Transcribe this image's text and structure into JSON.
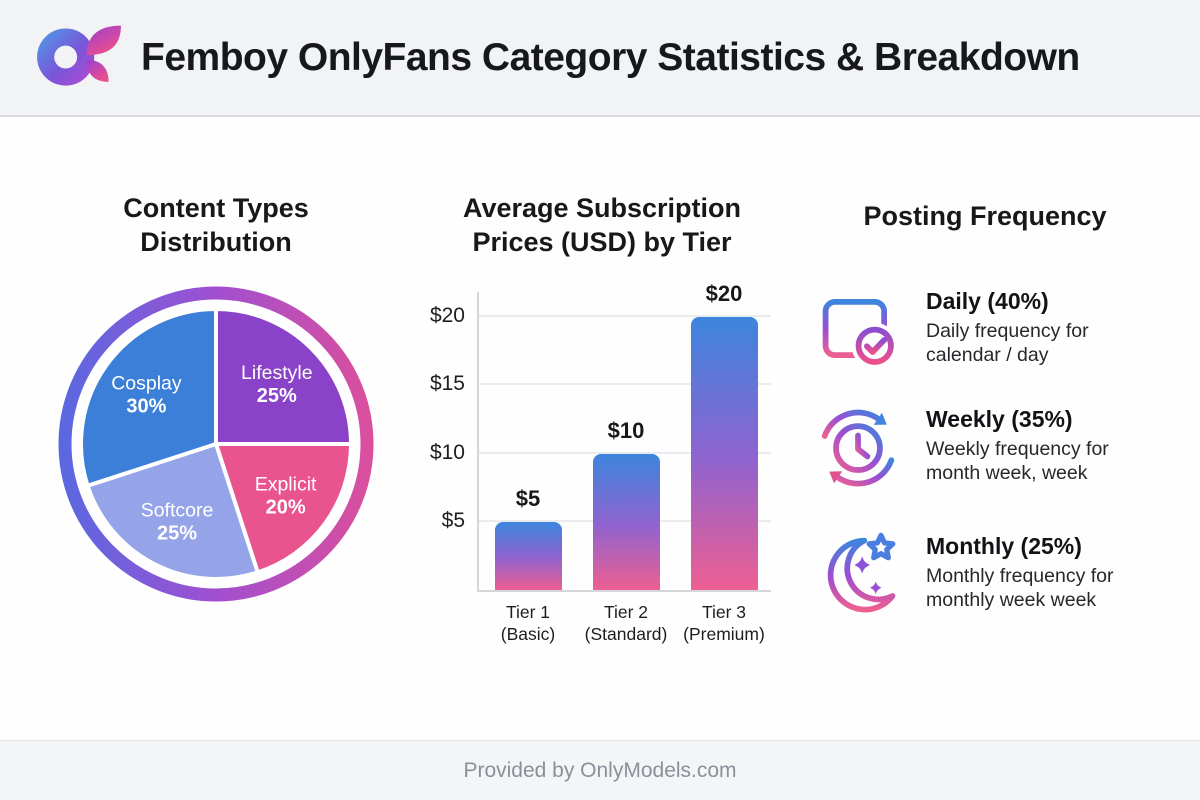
{
  "header": {
    "title": "Femboy OnlyFans Category Statistics & Breakdown"
  },
  "sections": {
    "pie": {
      "title_line1": "Content Types",
      "title_line2": "Distribution"
    },
    "bars": {
      "title_line1": "Average Subscription",
      "title_line2": "Prices (USD) by Tier"
    },
    "frequency": {
      "title": "Posting Frequency",
      "items": [
        {
          "icon": "calendar-check-icon",
          "label": "Daily (40%)",
          "desc_line1": "Daily frequency for",
          "desc_line2": "calendar / day"
        },
        {
          "icon": "clock-refresh-icon",
          "label": "Weekly (35%)",
          "desc_line1": "Weekly frequency for",
          "desc_line2": "month week, week"
        },
        {
          "icon": "moon-stars-icon",
          "label": "Monthly (25%)",
          "desc_line1": "Monthly frequency for",
          "desc_line2": "monthly week week"
        }
      ]
    }
  },
  "footer": {
    "text": "Provided by OnlyModels.com"
  },
  "chart_data": [
    {
      "type": "pie",
      "title": "Content Types Distribution",
      "labels": [
        "Lifestyle",
        "Explicit",
        "Softcore",
        "Cosplay"
      ],
      "values": [
        25,
        20,
        25,
        30
      ],
      "value_labels": [
        "25%",
        "20%",
        "25%",
        "30%"
      ],
      "start_angle_deg": 0,
      "direction": "clockwise",
      "colors": [
        "#8a42c8",
        "#e9548f",
        "#95a3e8",
        "#3b7fd8"
      ],
      "ring_gradient": [
        "#5b68e0",
        "#a04fd0",
        "#d94f9e"
      ],
      "slice_border_color": "#ffffff",
      "label_color": "#ffffff"
    },
    {
      "type": "bar",
      "title": "Average Subscription Prices (USD) by Tier",
      "categories": [
        "Tier 1 (Basic)",
        "Tier 2 (Standard)",
        "Tier 3 (Premium)"
      ],
      "category_lines": [
        [
          "Tier 1",
          "(Basic)"
        ],
        [
          "Tier 2",
          "(Standard)"
        ],
        [
          "Tier 3",
          "(Premium)"
        ]
      ],
      "values": [
        5,
        10,
        20
      ],
      "value_labels": [
        "$5",
        "$10",
        "$20"
      ],
      "y_ticks": [
        5,
        10,
        15,
        20
      ],
      "y_tick_labels": [
        "$5",
        "$10",
        "$15",
        "$20"
      ],
      "ylim": [
        0,
        22
      ],
      "grid": true,
      "legend": false,
      "bar_gradient": [
        "#3d85dd",
        "#8f63cf",
        "#ee5f92"
      ]
    }
  ],
  "colors": {
    "accent_blue": "#3d85dd",
    "accent_purple": "#9a4ed2",
    "accent_pink": "#ee5f92",
    "header_bg": "#f2f3f5",
    "footer_bg": "#f4f5f7",
    "title_text": "#17181a",
    "muted_text": "#8a9099"
  }
}
